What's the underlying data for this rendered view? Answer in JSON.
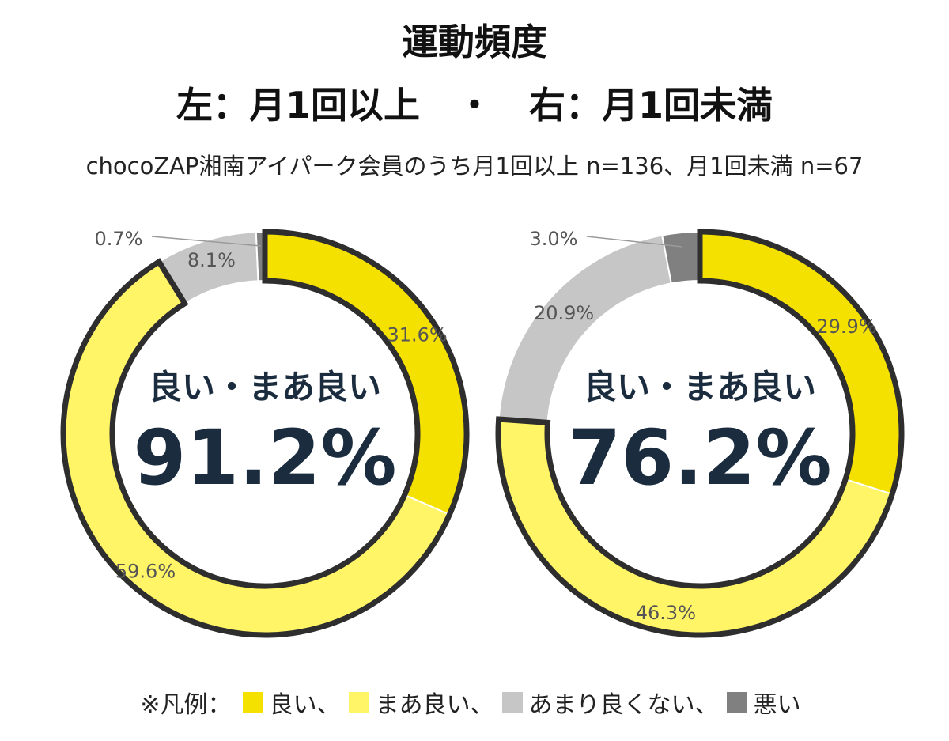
{
  "title": "運動頻度",
  "subtitle": "左：月1回以上　・　右：月1回未満",
  "note": "chocoZAP湘南アイパーク会員のうち月1回以上 n=136、月1回未満 n=67",
  "colors": {
    "good": "#f5e100",
    "fair": "#fff566",
    "not_good": "#c6c6c6",
    "bad": "#808080",
    "outline": "#2e2e2e",
    "center_text": "#1a2c3e",
    "label": "#555555"
  },
  "legend": {
    "prefix": "※凡例：",
    "items": [
      "良い、",
      "まあ良い、",
      "あまり良くない、",
      "悪い"
    ]
  },
  "chart_data": [
    {
      "type": "pie",
      "variant": "donut",
      "group": "月1回以上",
      "n": 136,
      "categories": [
        "良い",
        "まあ良い",
        "あまり良くない",
        "悪い"
      ],
      "values": [
        31.6,
        59.6,
        8.1,
        0.7
      ],
      "labels": [
        "31.6%",
        "59.6%",
        "8.1%",
        "0.7%"
      ],
      "highlighted": [
        "良い",
        "まあ良い"
      ],
      "center_label": "良い・まあ良い",
      "center_value": "91.2%"
    },
    {
      "type": "pie",
      "variant": "donut",
      "group": "月1回未満",
      "n": 67,
      "categories": [
        "良い",
        "まあ良い",
        "あまり良くない",
        "悪い"
      ],
      "values": [
        29.9,
        46.3,
        20.9,
        3.0
      ],
      "labels": [
        "29.9%",
        "46.3%",
        "20.9%",
        "3.0%"
      ],
      "highlighted": [
        "良い",
        "まあ良い"
      ],
      "center_label": "良い・まあ良い",
      "center_value": "76.2%"
    }
  ]
}
